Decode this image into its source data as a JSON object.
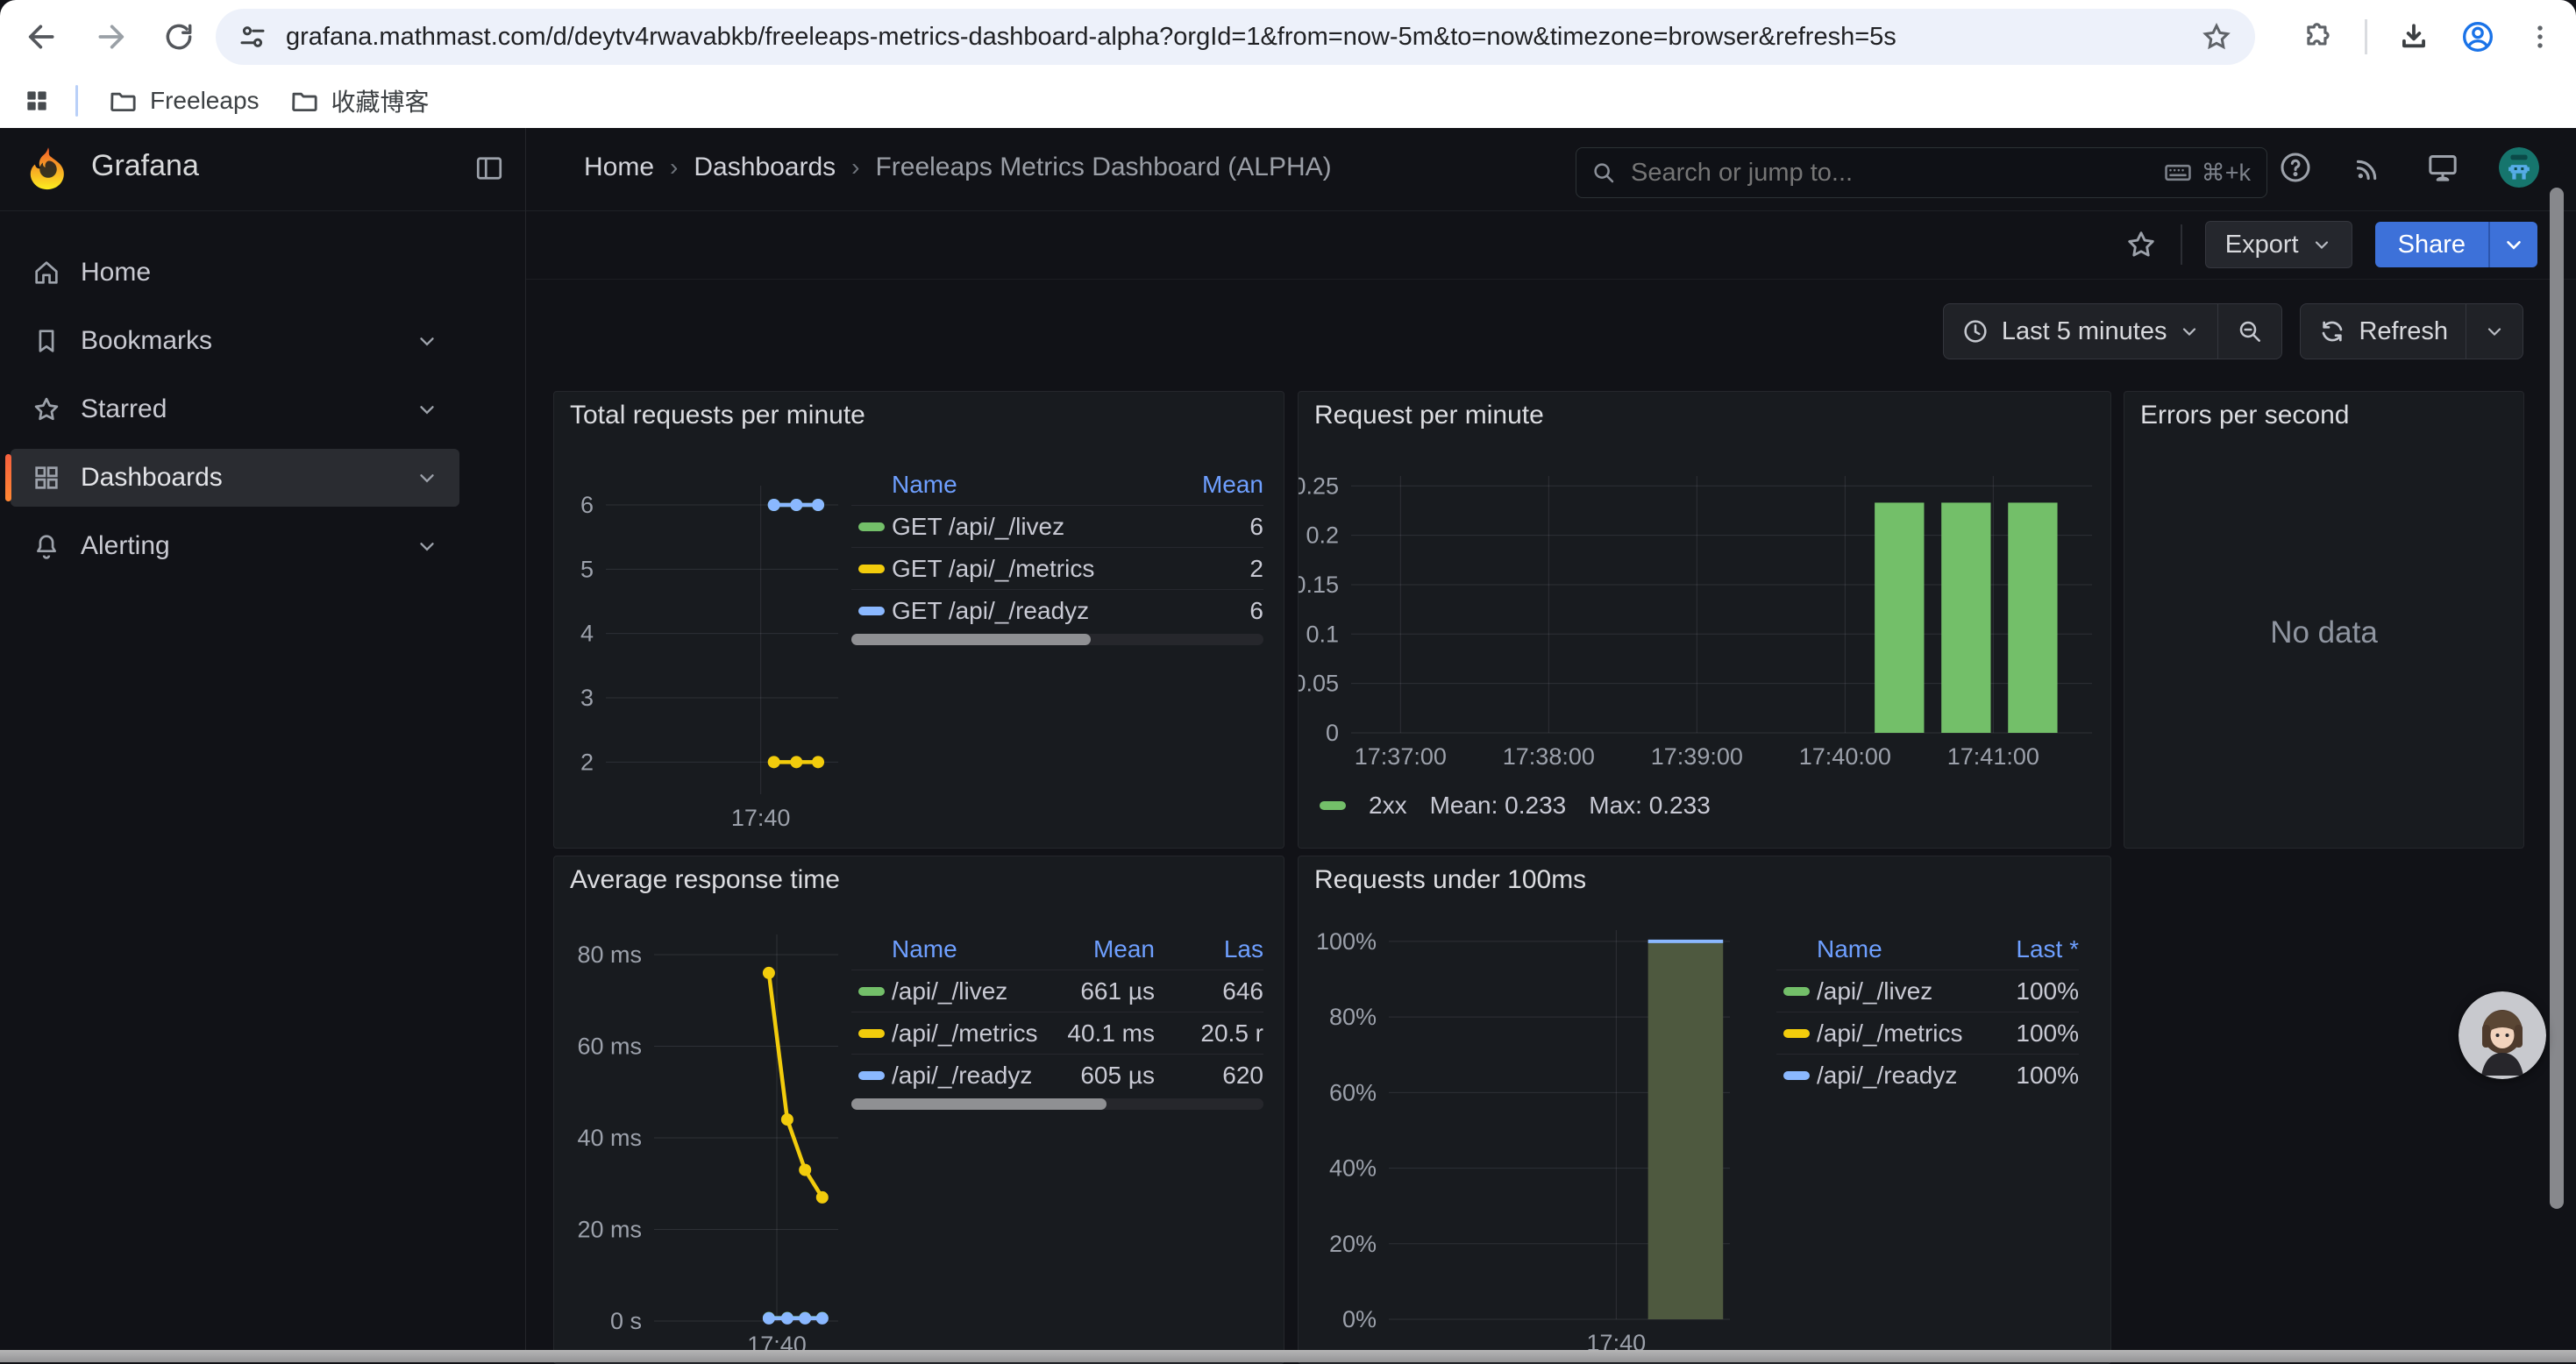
{
  "browser": {
    "url": "grafana.mathmast.com/d/deytv4rwavabkb/freeleaps-metrics-dashboard-alpha?orgId=1&from=now-5m&to=now&timezone=browser&refresh=5s",
    "bookmarks": [
      {
        "label": "Freeleaps"
      },
      {
        "label": "收藏博客"
      }
    ]
  },
  "sidebar": {
    "brand": "Grafana",
    "items": [
      {
        "label": "Home"
      },
      {
        "label": "Bookmarks"
      },
      {
        "label": "Starred"
      },
      {
        "label": "Dashboards"
      },
      {
        "label": "Alerting"
      }
    ]
  },
  "header": {
    "breadcrumb": [
      "Home",
      "Dashboards",
      "Freeleaps Metrics Dashboard (ALPHA)"
    ],
    "sep": "›",
    "search_placeholder": "Search or jump to...",
    "search_shortcut": "⌘+k"
  },
  "actions": {
    "export_label": "Export",
    "share_label": "Share"
  },
  "toolbar": {
    "time_range": "Last 5 minutes",
    "refresh_label": "Refresh"
  },
  "colors": {
    "green": "#73BF69",
    "yellow": "#F2CC0C",
    "blue": "#8AB8FF",
    "link": "#6E9FFF",
    "share_blue": "#3D71D9",
    "accent_orange": "#FF8833"
  },
  "chart_data": [
    {
      "type": "line",
      "title": "Total requests per minute",
      "x_domain": [
        0,
        300
      ],
      "ylim": [
        1.5,
        6.3
      ],
      "yticks": [
        {
          "v": 2,
          "label": "2"
        },
        {
          "v": 3,
          "label": "3"
        },
        {
          "v": 4,
          "label": "4"
        },
        {
          "v": 5,
          "label": "5"
        },
        {
          "v": 6,
          "label": "6"
        }
      ],
      "xticks": [
        {
          "v": 200,
          "label": "17:40"
        }
      ],
      "series": [
        {
          "name": "GET /api/_/livez",
          "color": "#73BF69",
          "points": [
            [
              217,
              6
            ],
            [
              246,
              6
            ],
            [
              274,
              6
            ]
          ]
        },
        {
          "name": "GET /api/_/metrics",
          "color": "#F2CC0C",
          "points": [
            [
              217,
              2
            ],
            [
              246,
              2
            ],
            [
              274,
              2
            ]
          ]
        },
        {
          "name": "GET /api/_/readyz",
          "color": "#8AB8FF",
          "points": [
            [
              217,
              6
            ],
            [
              246,
              6
            ],
            [
              274,
              6
            ]
          ]
        }
      ],
      "legend": {
        "h_name": "Name",
        "h_mean": "Mean",
        "rows": [
          {
            "name": "GET /api/_/livez",
            "mean": "6",
            "color": "#73BF69"
          },
          {
            "name": "GET /api/_/metrics",
            "mean": "2",
            "color": "#F2CC0C"
          },
          {
            "name": "GET /api/_/readyz",
            "mean": "6",
            "color": "#8AB8FF"
          }
        ]
      }
    },
    {
      "type": "bar",
      "title": "Request per minute",
      "x_domain": [
        0,
        300
      ],
      "ylim": [
        0,
        0.26
      ],
      "yticks": [
        {
          "v": 0,
          "label": "0"
        },
        {
          "v": 0.05,
          "label": "0.05"
        },
        {
          "v": 0.1,
          "label": "0.1"
        },
        {
          "v": 0.15,
          "label": "0.15"
        },
        {
          "v": 0.2,
          "label": "0.2"
        },
        {
          "v": 0.25,
          "label": "0.25"
        }
      ],
      "xticks": [
        {
          "v": 20,
          "label": "17:37:00"
        },
        {
          "v": 80,
          "label": "17:38:00"
        },
        {
          "v": 140,
          "label": "17:39:00"
        },
        {
          "v": 200,
          "label": "17:40:00"
        },
        {
          "v": 260,
          "label": "17:41:00"
        }
      ],
      "bars": {
        "fill": "#73BF69",
        "width_s": 20,
        "points": [
          [
            222,
            0.233
          ],
          [
            249,
            0.233
          ],
          [
            276,
            0.233
          ]
        ]
      },
      "legend_text": {
        "name": "2xx",
        "mean": "Mean: 0.233",
        "max": "Max: 0.233",
        "color": "#73BF69"
      }
    },
    {
      "type": "none",
      "title": "Errors per second",
      "no_data": "No data"
    },
    {
      "type": "line",
      "title": "Average response time",
      "x_domain": [
        0,
        300
      ],
      "ylim": [
        0,
        84.4
      ],
      "yticks": [
        {
          "v": 0,
          "label": "0 s"
        },
        {
          "v": 20,
          "label": "20 ms"
        },
        {
          "v": 40,
          "label": "40 ms"
        },
        {
          "v": 60,
          "label": "60 ms"
        },
        {
          "v": 80,
          "label": "80 ms"
        }
      ],
      "xticks": [
        {
          "v": 200,
          "label": "17:40"
        }
      ],
      "series": [
        {
          "name": "/api/_/livez",
          "color": "#73BF69",
          "points": [
            [
              187,
              0.66
            ],
            [
              217,
              0.66
            ],
            [
              246,
              0.66
            ],
            [
              274,
              0.66
            ]
          ]
        },
        {
          "name": "/api/_/metrics",
          "color": "#F2CC0C",
          "points": [
            [
              187,
              76
            ],
            [
              217,
              44
            ],
            [
              246,
              33
            ],
            [
              274,
              27
            ]
          ]
        },
        {
          "name": "/api/_/readyz",
          "color": "#8AB8FF",
          "points": [
            [
              187,
              0.6
            ],
            [
              217,
              0.6
            ],
            [
              246,
              0.6
            ],
            [
              274,
              0.6
            ]
          ]
        }
      ],
      "legend": {
        "h_name": "Name",
        "h_mean": "Mean",
        "h_last": "Las",
        "rows": [
          {
            "name": "/api/_/livez",
            "mean": "661 µs",
            "last": "646",
            "color": "#73BF69"
          },
          {
            "name": "/api/_/metrics",
            "mean": "40.1 ms",
            "last": "20.5 r",
            "color": "#F2CC0C"
          },
          {
            "name": "/api/_/readyz",
            "mean": "605 µs",
            "last": "620",
            "color": "#8AB8FF"
          }
        ]
      }
    },
    {
      "type": "bar",
      "title": "Requests under 100ms",
      "x_domain": [
        0,
        300
      ],
      "ylim": [
        0,
        103
      ],
      "yticks": [
        {
          "v": 0,
          "label": "0%"
        },
        {
          "v": 20,
          "label": "20%"
        },
        {
          "v": 40,
          "label": "40%"
        },
        {
          "v": 60,
          "label": "60%"
        },
        {
          "v": 80,
          "label": "80%"
        },
        {
          "v": 100,
          "label": "100%"
        }
      ],
      "xticks": [
        {
          "v": 200,
          "label": "17:40"
        }
      ],
      "bars": {
        "fill": "#4e593f",
        "top_line": "#8AB8FF",
        "width_s": 66,
        "points": [
          [
            261,
            100
          ]
        ]
      },
      "legend": {
        "h_name": "Name",
        "h_last": "Last *",
        "rows": [
          {
            "name": "/api/_/livez",
            "last": "100%",
            "color": "#73BF69"
          },
          {
            "name": "/api/_/metrics",
            "last": "100%",
            "color": "#F2CC0C"
          },
          {
            "name": "/api/_/readyz",
            "last": "100%",
            "color": "#8AB8FF"
          }
        ]
      }
    }
  ]
}
